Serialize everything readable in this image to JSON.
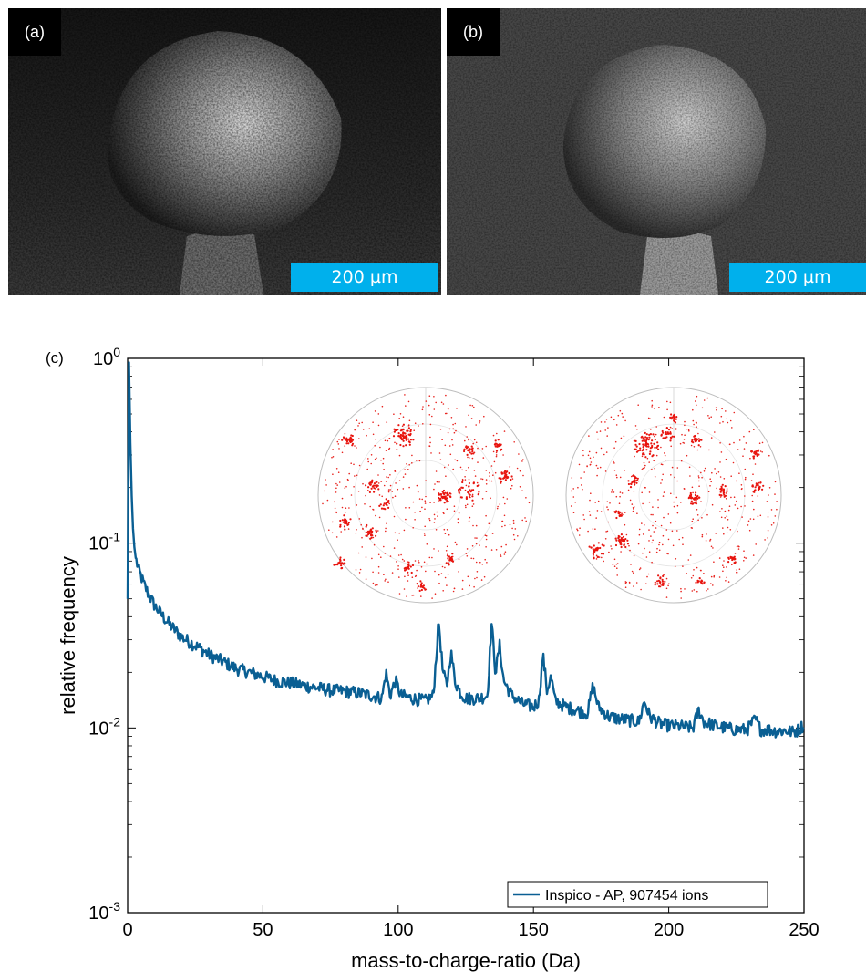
{
  "panels": [
    {
      "label": "(a)",
      "scale_bar": "200 µm"
    },
    {
      "label": "(b)",
      "scale_bar": "200 µm"
    }
  ],
  "chart_data": {
    "type": "line",
    "panel_label": "(c)",
    "xlabel": "mass-to-charge-ratio (Da)",
    "ylabel": "relative frequency",
    "xlim": [
      0,
      250
    ],
    "ylim": [
      0.001,
      1
    ],
    "yscale": "log",
    "x_ticks": [
      0,
      50,
      100,
      150,
      200,
      250
    ],
    "y_ticks": [
      {
        "base": "10",
        "exp": "-3",
        "value": 0.001
      },
      {
        "base": "10",
        "exp": "-2",
        "value": 0.01
      },
      {
        "base": "10",
        "exp": "-1",
        "value": 0.1
      },
      {
        "base": "10",
        "exp": "0",
        "value": 1
      }
    ],
    "grid": false,
    "legend_position": "bottom-right",
    "series": [
      {
        "name": "Inspico - AP, 907454 ions",
        "color": "#0a5f93",
        "x": [
          0,
          0.5,
          1,
          1.5,
          2,
          2.5,
          3,
          4,
          5,
          6,
          8,
          10,
          12,
          15,
          20,
          25,
          30,
          35,
          40,
          45,
          50,
          55,
          60,
          65,
          70,
          75,
          80,
          85,
          90,
          94,
          95.5,
          97,
          99,
          101,
          105,
          110,
          113,
          115,
          116.5,
          118,
          119.5,
          121,
          123,
          125,
          130,
          133,
          134.5,
          136,
          137.5,
          139,
          142,
          146,
          150,
          152,
          153.5,
          155,
          156.5,
          158,
          162,
          166,
          170,
          172,
          174,
          178,
          182,
          186,
          189,
          191,
          193,
          197,
          201,
          205,
          209,
          211,
          213,
          217,
          221,
          225,
          229,
          232,
          234,
          237,
          240,
          243,
          246,
          248,
          250
        ],
        "y": [
          0.05,
          0.95,
          0.35,
          0.18,
          0.12,
          0.095,
          0.083,
          0.072,
          0.066,
          0.06,
          0.052,
          0.046,
          0.042,
          0.037,
          0.031,
          0.028,
          0.025,
          0.023,
          0.021,
          0.02,
          0.019,
          0.018,
          0.0175,
          0.017,
          0.0165,
          0.016,
          0.0158,
          0.0155,
          0.015,
          0.0145,
          0.02,
          0.015,
          0.018,
          0.015,
          0.0145,
          0.014,
          0.015,
          0.038,
          0.02,
          0.017,
          0.026,
          0.018,
          0.0155,
          0.0145,
          0.0145,
          0.015,
          0.037,
          0.02,
          0.028,
          0.018,
          0.015,
          0.0135,
          0.013,
          0.014,
          0.025,
          0.016,
          0.019,
          0.014,
          0.013,
          0.0125,
          0.012,
          0.017,
          0.013,
          0.0115,
          0.0112,
          0.011,
          0.0108,
          0.014,
          0.0115,
          0.0105,
          0.0103,
          0.0102,
          0.01,
          0.0125,
          0.0108,
          0.0103,
          0.01,
          0.0098,
          0.0098,
          0.0112,
          0.0098,
          0.0098,
          0.0096,
          0.0097,
          0.0095,
          0.0098,
          0.0105
        ]
      }
    ]
  }
}
